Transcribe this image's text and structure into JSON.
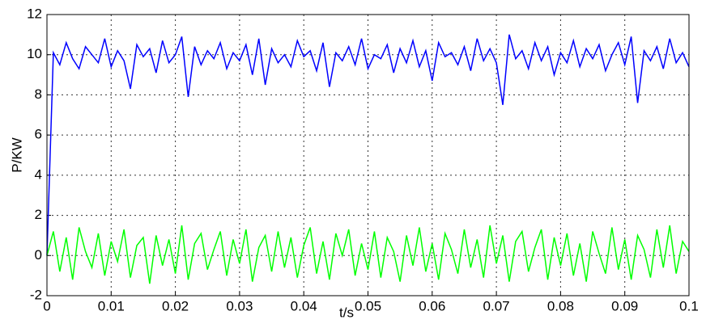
{
  "chart_data": {
    "type": "line",
    "x_label": "t/s",
    "y_label": "P/KW",
    "x": [
      0,
      0.001,
      0.002,
      0.003,
      0.004,
      0.005,
      0.006,
      0.007,
      0.008,
      0.009,
      0.01,
      0.011,
      0.012,
      0.013,
      0.014,
      0.015,
      0.016,
      0.017,
      0.018,
      0.019,
      0.02,
      0.021,
      0.022,
      0.023,
      0.024,
      0.025,
      0.026,
      0.027,
      0.028,
      0.029,
      0.03,
      0.031,
      0.032,
      0.033,
      0.034,
      0.035,
      0.036,
      0.037,
      0.038,
      0.039,
      0.04,
      0.041,
      0.042,
      0.043,
      0.044,
      0.045,
      0.046,
      0.047,
      0.048,
      0.049,
      0.05,
      0.051,
      0.052,
      0.053,
      0.054,
      0.055,
      0.056,
      0.057,
      0.058,
      0.059,
      0.06,
      0.061,
      0.062,
      0.063,
      0.064,
      0.065,
      0.066,
      0.067,
      0.068,
      0.069,
      0.07,
      0.071,
      0.072,
      0.073,
      0.074,
      0.075,
      0.076,
      0.077,
      0.078,
      0.079,
      0.08,
      0.081,
      0.082,
      0.083,
      0.084,
      0.085,
      0.086,
      0.087,
      0.088,
      0.089,
      0.09,
      0.091,
      0.092,
      0.093,
      0.094,
      0.095,
      0.096,
      0.097,
      0.098,
      0.099,
      0.1
    ],
    "series": [
      {
        "color": "#0000ff",
        "values": [
          0,
          10.1,
          9.5,
          10.6,
          9.8,
          9.3,
          10.4,
          10.0,
          9.6,
          10.8,
          9.4,
          10.2,
          9.7,
          8.3,
          10.5,
          9.9,
          10.3,
          9.1,
          10.7,
          9.6,
          10.0,
          10.9,
          7.9,
          10.4,
          9.5,
          10.2,
          9.8,
          10.6,
          9.3,
          10.1,
          9.7,
          10.5,
          9.0,
          10.8,
          8.5,
          10.3,
          9.6,
          10.0,
          9.4,
          10.7,
          9.9,
          10.2,
          9.2,
          10.6,
          8.4,
          10.1,
          9.7,
          10.4,
          9.5,
          10.8,
          9.3,
          10.0,
          9.8,
          10.5,
          9.1,
          10.3,
          9.6,
          10.7,
          9.4,
          10.2,
          8.7,
          10.6,
          9.9,
          10.1,
          9.5,
          10.4,
          9.2,
          10.8,
          9.7,
          10.3,
          9.6,
          7.5,
          11.0,
          9.8,
          10.2,
          9.3,
          10.6,
          9.7,
          10.4,
          9.0,
          10.1,
          9.6,
          10.7,
          9.4,
          10.3,
          9.8,
          10.5,
          9.2,
          10.0,
          10.6,
          9.5,
          10.9,
          7.6,
          10.2,
          9.7,
          10.4,
          9.3,
          10.8,
          9.6,
          10.1,
          9.4
        ]
      },
      {
        "color": "#00ff00",
        "values": [
          0,
          1.2,
          -0.8,
          0.9,
          -1.2,
          1.4,
          0.2,
          -0.6,
          1.1,
          -1.0,
          0.7,
          -0.3,
          1.3,
          -1.1,
          0.5,
          0.9,
          -1.4,
          1.0,
          -0.5,
          0.8,
          -0.9,
          1.5,
          -1.2,
          0.6,
          1.1,
          -0.7,
          0.3,
          1.2,
          -1.0,
          0.8,
          -0.4,
          1.3,
          -1.3,
          0.4,
          1.0,
          -0.8,
          1.2,
          -0.6,
          0.9,
          -1.1,
          0.5,
          1.4,
          -0.9,
          0.7,
          -1.2,
          1.1,
          0.0,
          1.3,
          -1.0,
          0.6,
          -0.7,
          1.2,
          -1.1,
          0.9,
          0.2,
          -1.3,
          1.0,
          -0.5,
          1.4,
          -0.8,
          0.6,
          -1.2,
          1.1,
          0.3,
          -0.9,
          1.3,
          -0.6,
          0.8,
          -1.1,
          1.5,
          -0.4,
          1.0,
          -1.3,
          0.7,
          1.2,
          -0.8,
          0.4,
          1.3,
          -1.2,
          0.9,
          -0.5,
          1.1,
          -1.0,
          0.6,
          -1.3,
          1.2,
          0.1,
          -0.9,
          1.4,
          -0.7,
          0.8,
          -1.2,
          1.0,
          0.3,
          -1.1,
          1.3,
          -0.6,
          1.5,
          -0.9,
          0.7,
          0.2
        ]
      }
    ],
    "xlim": [
      0,
      0.1
    ],
    "xticks": [
      0,
      0.01,
      0.02,
      0.03,
      0.04,
      0.05,
      0.06,
      0.07,
      0.08,
      0.09,
      0.1
    ],
    "ylim": [
      -2,
      12
    ],
    "yticks": [
      -2,
      0,
      2,
      4,
      6,
      8,
      10,
      12
    ],
    "grid": true
  }
}
